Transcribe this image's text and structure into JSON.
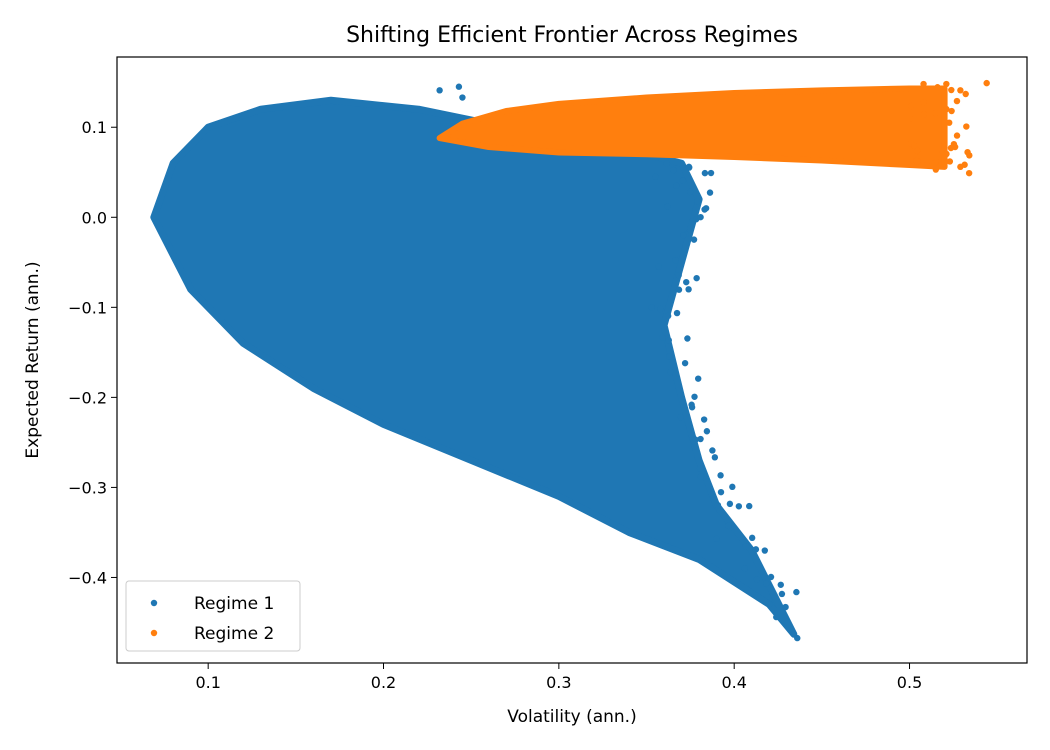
{
  "chart_data": {
    "type": "scatter",
    "title": "Shifting Efficient Frontier Across Regimes",
    "xlabel": "Volatility (ann.)",
    "ylabel": "Expected Return (ann.)",
    "xlim": [
      0.048,
      0.567
    ],
    "ylim": [
      -0.495,
      0.178
    ],
    "x_ticks": [
      0.1,
      0.2,
      0.3,
      0.4,
      0.5
    ],
    "x_tick_labels": [
      "0.1",
      "0.2",
      "0.3",
      "0.4",
      "0.5"
    ],
    "y_ticks": [
      0.1,
      0.0,
      -0.1,
      -0.2,
      -0.3,
      -0.4
    ],
    "y_tick_labels": [
      "0.1",
      "0.0",
      "−0.1",
      "−0.2",
      "−0.3",
      "−0.4"
    ],
    "grid": false,
    "legend_position": "lower-left",
    "series": [
      {
        "name": "Regime 1",
        "color": "#1f77b4",
        "region": {
          "min_variance_point": [
            0.069,
            0.0
          ],
          "upper_frontier": [
            [
              0.069,
              0.0
            ],
            [
              0.08,
              0.06
            ],
            [
              0.1,
              0.1
            ],
            [
              0.13,
              0.12
            ],
            [
              0.17,
              0.13
            ],
            [
              0.22,
              0.12
            ],
            [
              0.27,
              0.1
            ],
            [
              0.33,
              0.08
            ],
            [
              0.37,
              0.06
            ],
            [
              0.38,
              0.02
            ],
            [
              0.37,
              -0.05
            ],
            [
              0.36,
              -0.12
            ],
            [
              0.37,
              -0.2
            ]
          ],
          "lower_frontier": [
            [
              0.069,
              0.0
            ],
            [
              0.09,
              -0.08
            ],
            [
              0.12,
              -0.14
            ],
            [
              0.16,
              -0.19
            ],
            [
              0.2,
              -0.23
            ],
            [
              0.25,
              -0.27
            ],
            [
              0.3,
              -0.31
            ],
            [
              0.34,
              -0.35
            ],
            [
              0.38,
              -0.38
            ],
            [
              0.42,
              -0.43
            ],
            [
              0.434,
              -0.463
            ]
          ],
          "right_boundary": [
            [
              0.37,
              -0.2
            ],
            [
              0.38,
              -0.27
            ],
            [
              0.39,
              -0.32
            ],
            [
              0.41,
              -0.37
            ],
            [
              0.434,
              -0.463
            ]
          ]
        },
        "outliers": [
          [
            0.232,
            0.141
          ],
          [
            0.243,
            0.145
          ],
          [
            0.245,
            0.133
          ],
          [
            0.384,
            0.01
          ],
          [
            0.434,
            -0.463
          ],
          [
            0.424,
            -0.444
          ],
          [
            0.413,
            -0.402
          ],
          [
            0.39,
            -0.357
          ],
          [
            0.381,
            -0.288
          ],
          [
            0.378,
            -0.247
          ],
          [
            0.376,
            -0.211
          ],
          [
            0.372,
            -0.162
          ],
          [
            0.374,
            -0.08
          ],
          [
            0.371,
            -0.02
          ],
          [
            0.362,
            0.012
          ],
          [
            0.355,
            0.045
          ],
          [
            0.367,
            0.035
          ],
          [
            0.357,
            -0.055
          ],
          [
            0.353,
            -0.1
          ],
          [
            0.406,
            -0.39
          ],
          [
            0.42,
            -0.43
          ]
        ]
      },
      {
        "name": "Regime 2",
        "color": "#ff7f0e",
        "region": {
          "tip": [
            0.232,
            0.088
          ],
          "upper_edge": [
            [
              0.232,
              0.088
            ],
            [
              0.245,
              0.104
            ],
            [
              0.27,
              0.118
            ],
            [
              0.3,
              0.126
            ],
            [
              0.35,
              0.133
            ],
            [
              0.4,
              0.138
            ],
            [
              0.45,
              0.141
            ],
            [
              0.5,
              0.143
            ],
            [
              0.52,
              0.143
            ]
          ],
          "lower_edge": [
            [
              0.232,
              0.088
            ],
            [
              0.26,
              0.078
            ],
            [
              0.3,
              0.072
            ],
            [
              0.35,
              0.07
            ],
            [
              0.4,
              0.067
            ],
            [
              0.45,
              0.063
            ],
            [
              0.5,
              0.058
            ],
            [
              0.52,
              0.056
            ]
          ]
        },
        "outliers": [
          [
            0.544,
            0.149
          ],
          [
            0.534,
            0.049
          ],
          [
            0.529,
            0.056
          ],
          [
            0.523,
            0.062
          ],
          [
            0.515,
            0.053
          ],
          [
            0.529,
            0.141
          ],
          [
            0.521,
            0.148
          ],
          [
            0.508,
            0.148
          ],
          [
            0.526,
            0.078
          ],
          [
            0.524,
            0.118
          ]
        ]
      }
    ]
  }
}
